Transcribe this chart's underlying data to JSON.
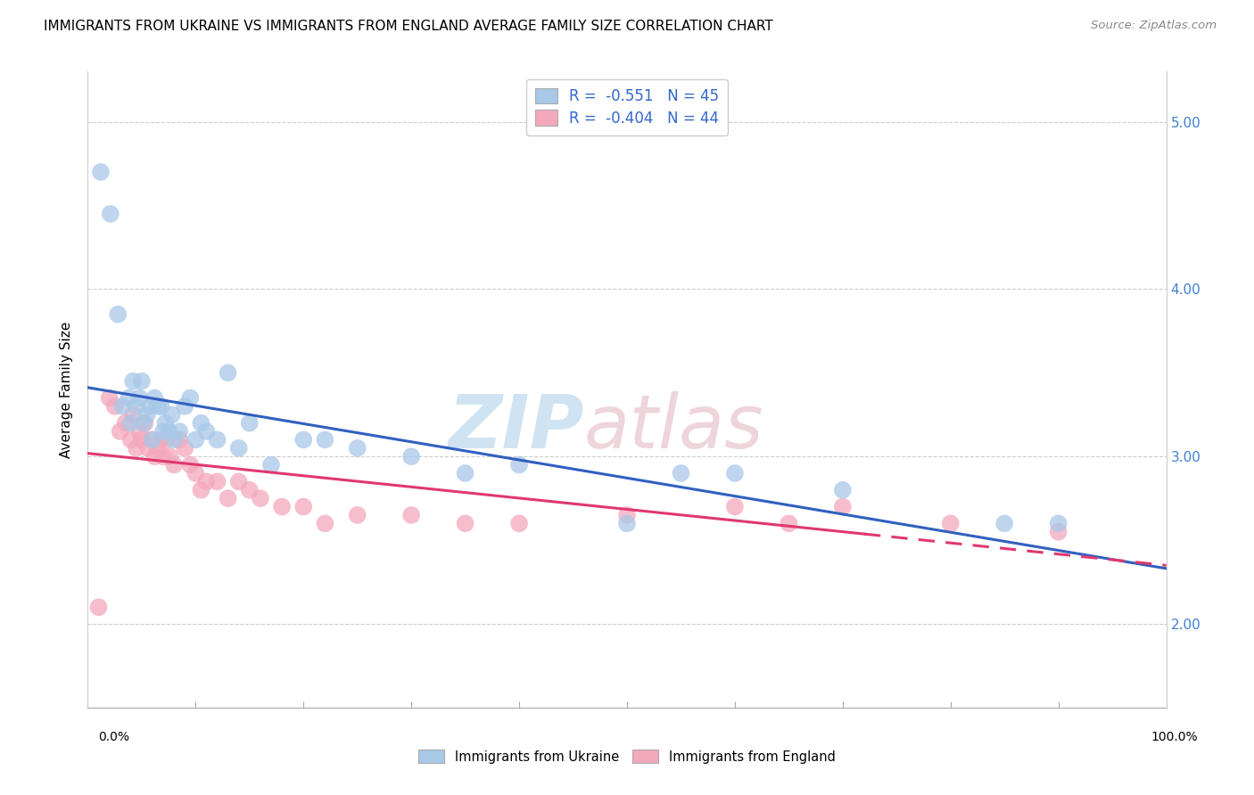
{
  "title": "IMMIGRANTS FROM UKRAINE VS IMMIGRANTS FROM ENGLAND AVERAGE FAMILY SIZE CORRELATION CHART",
  "source": "Source: ZipAtlas.com",
  "ylabel": "Average Family Size",
  "ukraine_R": -0.551,
  "ukraine_N": 45,
  "england_R": -0.404,
  "england_N": 44,
  "ukraine_color": "#a8c8e8",
  "england_color": "#f4a8bc",
  "ukraine_line_color": "#3060c0",
  "england_line_color": "#e03870",
  "legend_text_color": "#3366cc",
  "right_axis_color": "#4080d0",
  "ukraine_x": [
    1.2,
    2.1,
    2.8,
    3.2,
    3.8,
    4.0,
    4.2,
    4.5,
    4.8,
    5.0,
    5.2,
    5.5,
    5.8,
    6.0,
    6.2,
    6.5,
    6.8,
    7.0,
    7.2,
    7.5,
    7.8,
    8.0,
    8.5,
    9.0,
    9.5,
    10.0,
    10.5,
    11.0,
    12.0,
    13.0,
    14.0,
    15.0,
    17.0,
    20.0,
    22.0,
    25.0,
    30.0,
    35.0,
    40.0,
    50.0,
    55.0,
    60.0,
    70.0,
    85.0,
    90.0
  ],
  "ukraine_y": [
    4.7,
    4.45,
    3.85,
    3.3,
    3.35,
    3.2,
    3.45,
    3.3,
    3.35,
    3.45,
    3.2,
    3.25,
    3.3,
    3.1,
    3.35,
    3.3,
    3.3,
    3.15,
    3.2,
    3.15,
    3.25,
    3.1,
    3.15,
    3.3,
    3.35,
    3.1,
    3.2,
    3.15,
    3.1,
    3.5,
    3.05,
    3.2,
    2.95,
    3.1,
    3.1,
    3.05,
    3.0,
    2.9,
    2.95,
    2.6,
    2.9,
    2.9,
    2.8,
    2.6,
    2.6
  ],
  "england_x": [
    1.0,
    2.0,
    2.5,
    3.0,
    3.5,
    4.0,
    4.2,
    4.5,
    4.8,
    5.0,
    5.3,
    5.6,
    5.9,
    6.2,
    6.5,
    6.8,
    7.0,
    7.3,
    7.6,
    8.0,
    8.5,
    9.0,
    9.5,
    10.0,
    10.5,
    11.0,
    12.0,
    13.0,
    14.0,
    15.0,
    16.0,
    18.0,
    20.0,
    22.0,
    25.0,
    30.0,
    35.0,
    40.0,
    50.0,
    60.0,
    65.0,
    70.0,
    80.0,
    90.0
  ],
  "england_y": [
    2.1,
    3.35,
    3.3,
    3.15,
    3.2,
    3.1,
    3.25,
    3.05,
    3.15,
    3.1,
    3.2,
    3.05,
    3.1,
    3.0,
    3.05,
    3.1,
    3.0,
    3.1,
    3.0,
    2.95,
    3.1,
    3.05,
    2.95,
    2.9,
    2.8,
    2.85,
    2.85,
    2.75,
    2.85,
    2.8,
    2.75,
    2.7,
    2.7,
    2.6,
    2.65,
    2.65,
    2.6,
    2.6,
    2.65,
    2.7,
    2.6,
    2.7,
    2.6,
    2.55
  ]
}
